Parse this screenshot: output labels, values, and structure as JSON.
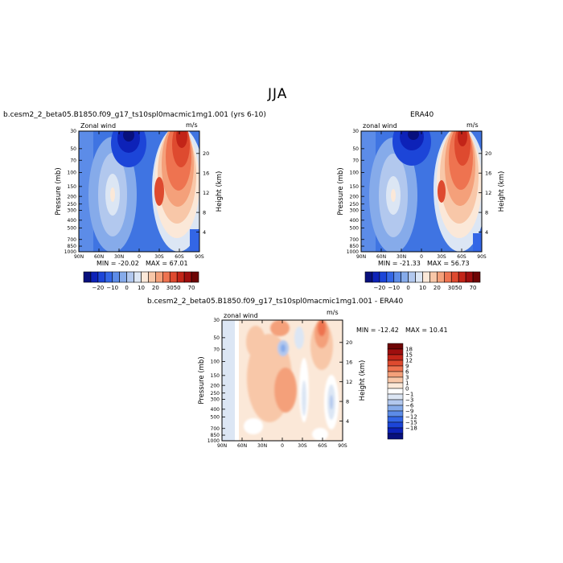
{
  "figure": {
    "title": "JJA"
  },
  "colors": {
    "top_scale": [
      "#08107d",
      "#0d22b8",
      "#1c45d8",
      "#3366e6",
      "#5c8ce8",
      "#86abea",
      "#b2c8ee",
      "#dce6f4",
      "#fbe8d8",
      "#f8c7a8",
      "#f4a07a",
      "#ee7350",
      "#de4a2f",
      "#c22418",
      "#9e0e0e",
      "#6e0505"
    ],
    "diff_scale": [
      "#08107d",
      "#0d22b8",
      "#1c45d8",
      "#3366e6",
      "#5c8ce8",
      "#86abea",
      "#b2c8ee",
      "#dce6f4",
      "#ffffff",
      "#fbe8d8",
      "#f8c7a8",
      "#f4a07a",
      "#ee7350",
      "#de4a2f",
      "#c22418",
      "#9e0e0e",
      "#6e0505"
    ]
  },
  "chart_data": [
    {
      "type": "heatmap",
      "panel": "model",
      "title": "b.cesm2_2_beta05.B1850.f09_g17_ts10spl0macmic1mg1.001 (yrs 6-10)",
      "subtitle_left": "Zonal wind",
      "units": "m/s",
      "ylabel": "Pressure (mb)",
      "ylabel_right": "Height (km)",
      "x_ticks": [
        "90N",
        "60N",
        "30N",
        "0",
        "30S",
        "60S",
        "90S"
      ],
      "y_ticks": [
        "30",
        "50",
        "70",
        "100",
        "150",
        "200",
        "250",
        "300",
        "400",
        "500",
        "700",
        "850",
        "1000"
      ],
      "y_right_ticks": [
        "20",
        "16",
        "12",
        "8",
        "4"
      ],
      "min_label": "MIN = -20.02",
      "max_label": "MAX =  67.01",
      "min": -20.02,
      "max": 67.01,
      "colorbar_labels": [
        "-20",
        "-10",
        "0",
        "10",
        "20",
        "30",
        "50",
        "70"
      ]
    },
    {
      "type": "heatmap",
      "panel": "obs",
      "title": "ERA40",
      "subtitle_left": "zonal wind",
      "units": "m/s",
      "ylabel": "Pressure (mb)",
      "ylabel_right": "Height (km)",
      "x_ticks": [
        "90N",
        "60N",
        "30N",
        "0",
        "30S",
        "60S",
        "90S"
      ],
      "y_ticks": [
        "30",
        "50",
        "70",
        "100",
        "150",
        "200",
        "250",
        "300",
        "400",
        "500",
        "700",
        "850",
        "1000"
      ],
      "y_right_ticks": [
        "20",
        "16",
        "12",
        "8",
        "4"
      ],
      "min_label": "MIN = -21.33",
      "max_label": "MAX =  56.73",
      "min": -21.33,
      "max": 56.73,
      "colorbar_labels": [
        "-20",
        "-10",
        "0",
        "10",
        "20",
        "30",
        "50",
        "70"
      ]
    },
    {
      "type": "heatmap",
      "panel": "difference",
      "title": "b.cesm2_2_beta05.B1850.f09_g17_ts10spl0macmic1mg1.001 - ERA40",
      "subtitle_left": "zonal wind",
      "units": "m/s",
      "ylabel": "Pressure (mb)",
      "ylabel_right": "Height (km)",
      "x_ticks": [
        "90N",
        "60N",
        "30N",
        "0",
        "30S",
        "60S",
        "90S"
      ],
      "y_ticks": [
        "30",
        "50",
        "70",
        "100",
        "150",
        "200",
        "250",
        "300",
        "400",
        "500",
        "700",
        "850",
        "1000"
      ],
      "y_right_ticks": [
        "20",
        "16",
        "12",
        "8",
        "4"
      ],
      "min_label": "MIN = -12.42",
      "max_label": "MAX =  10.41",
      "min": -12.42,
      "max": 10.41,
      "colorbar_labels": [
        "18",
        "15",
        "12",
        "9",
        "6",
        "3",
        "1",
        "0",
        "-1",
        "-3",
        "-6",
        "-9",
        "-12",
        "-15",
        "-18"
      ]
    }
  ]
}
